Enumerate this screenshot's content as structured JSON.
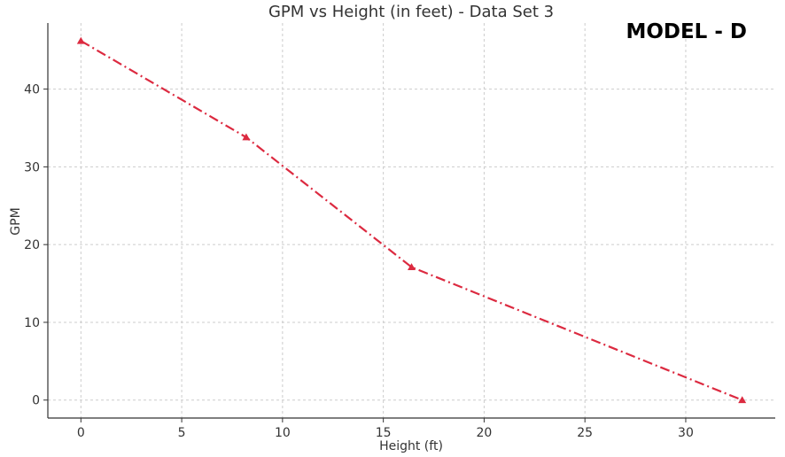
{
  "chart_data": {
    "type": "line",
    "title": "GPM vs Height (in feet) - Data Set 3",
    "annotation": "MODEL - D",
    "xlabel": "Height (ft)",
    "ylabel": "GPM",
    "xlim": [
      -1.64,
      34.44
    ],
    "ylim": [
      -2.31,
      48.5
    ],
    "xticks": [
      0,
      5,
      10,
      15,
      20,
      25,
      30
    ],
    "yticks": [
      0,
      10,
      20,
      30,
      40
    ],
    "grid": true,
    "series": [
      {
        "x": [
          0,
          8.2,
          16.4,
          32.8
        ],
        "y": [
          46.2,
          33.8,
          17.1,
          0
        ],
        "color": "#dc2a40",
        "line_style": "dash-dot",
        "marker": "triangle"
      }
    ]
  }
}
